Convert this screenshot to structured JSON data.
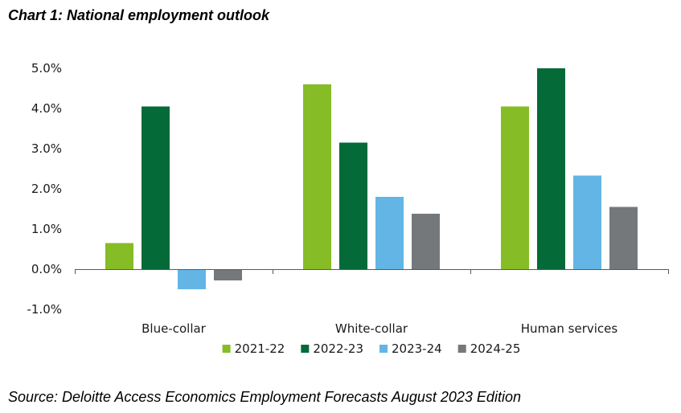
{
  "title": "Chart 1: National employment outlook",
  "source": "Source: Deloitte Access Economics Employment Forecasts August 2023 Edition",
  "chart_data": {
    "type": "bar",
    "title": "Chart 1: National employment outlook",
    "xlabel": "",
    "ylabel": "",
    "categories": [
      "Blue-collar",
      "White-collar",
      "Human services"
    ],
    "series": [
      {
        "name": "2021-22",
        "color": "#86bc25",
        "values": [
          0.65,
          4.6,
          4.05
        ]
      },
      {
        "name": "2022-23",
        "color": "#046a38",
        "values": [
          4.05,
          3.15,
          5.0
        ]
      },
      {
        "name": "2023-24",
        "color": "#62b5e5",
        "values": [
          -0.5,
          1.8,
          2.33
        ]
      },
      {
        "name": "2024-25",
        "color": "#75787b",
        "values": [
          -0.28,
          1.38,
          1.55
        ]
      }
    ],
    "ylim": [
      -1.0,
      5.0
    ],
    "yticks": [
      -1.0,
      0.0,
      1.0,
      2.0,
      3.0,
      4.0,
      5.0
    ],
    "ytick_labels": [
      "-1.0%",
      "0.0%",
      "1.0%",
      "2.0%",
      "3.0%",
      "4.0%",
      "5.0%"
    ],
    "grid": false,
    "legend_position": "bottom"
  }
}
